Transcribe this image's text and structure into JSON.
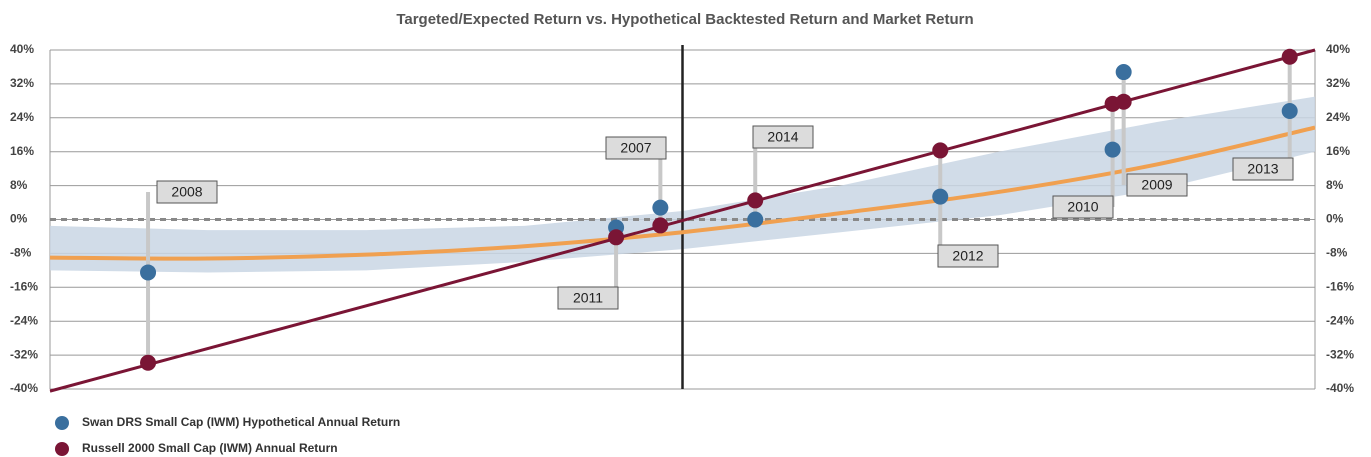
{
  "chart_data": {
    "type": "scatter",
    "title": "Targeted/Expected Return vs. Hypothetical Backtested Return and Market Return",
    "labels": [
      "2008",
      "2011",
      "2007",
      "2014",
      "2012",
      "2010",
      "2009",
      "2013"
    ],
    "x": [
      -33.8,
      -4.2,
      -1.4,
      4.6,
      16.3,
      27.2,
      27.9,
      38.4
    ],
    "series": [
      {
        "name": "Swan DRS Small Cap (IWM) Hypothetical Annual Return",
        "color": "#3a6f9e",
        "values": [
          -12.5,
          -1.9,
          2.8,
          0,
          5.4,
          16.5,
          34.8,
          25.6
        ]
      },
      {
        "name": "Russell 2000 Small Cap (IWM) Annual Return",
        "color": "#7a1535",
        "values": [
          -33.8,
          -4.2,
          -1.4,
          4.5,
          16.3,
          27.3,
          27.8,
          38.4
        ]
      }
    ],
    "fit": {
      "color": "#f0a050",
      "x": [
        -40,
        -30,
        -20,
        -10,
        0,
        10,
        20,
        30,
        40
      ],
      "values": [
        -9,
        -9.2,
        -8.3,
        -6.3,
        -3,
        1.5,
        6.5,
        13,
        21.7
      ],
      "band_upper": [
        -1.5,
        -2.5,
        -2.5,
        -1.5,
        2,
        8,
        16,
        23,
        29
      ],
      "band_lower": [
        -12,
        -12.5,
        -12,
        -10,
        -7,
        -3,
        1,
        7,
        16
      ],
      "band_color": "#c9d6e4"
    },
    "market_line": {
      "color": "#7a1535",
      "x": [
        -40,
        40
      ],
      "values": [
        -40.5,
        40
      ]
    },
    "xlim": [
      -40,
      40
    ],
    "ylim": [
      -40,
      40
    ],
    "yticks": [
      {
        "value": 40,
        "label": "40%"
      },
      {
        "value": 32,
        "label": "32%"
      },
      {
        "value": 24,
        "label": "24%"
      },
      {
        "value": 16,
        "label": "16%"
      },
      {
        "value": 8,
        "label": "8%"
      },
      {
        "value": 0,
        "label": "0%"
      },
      {
        "value": -8,
        "label": "-8%"
      },
      {
        "value": -16,
        "label": "-16%"
      },
      {
        "value": -24,
        "label": "-24%"
      },
      {
        "value": -32,
        "label": "-32%"
      },
      {
        "value": -40,
        "label": "-40%"
      }
    ],
    "grid": true
  }
}
